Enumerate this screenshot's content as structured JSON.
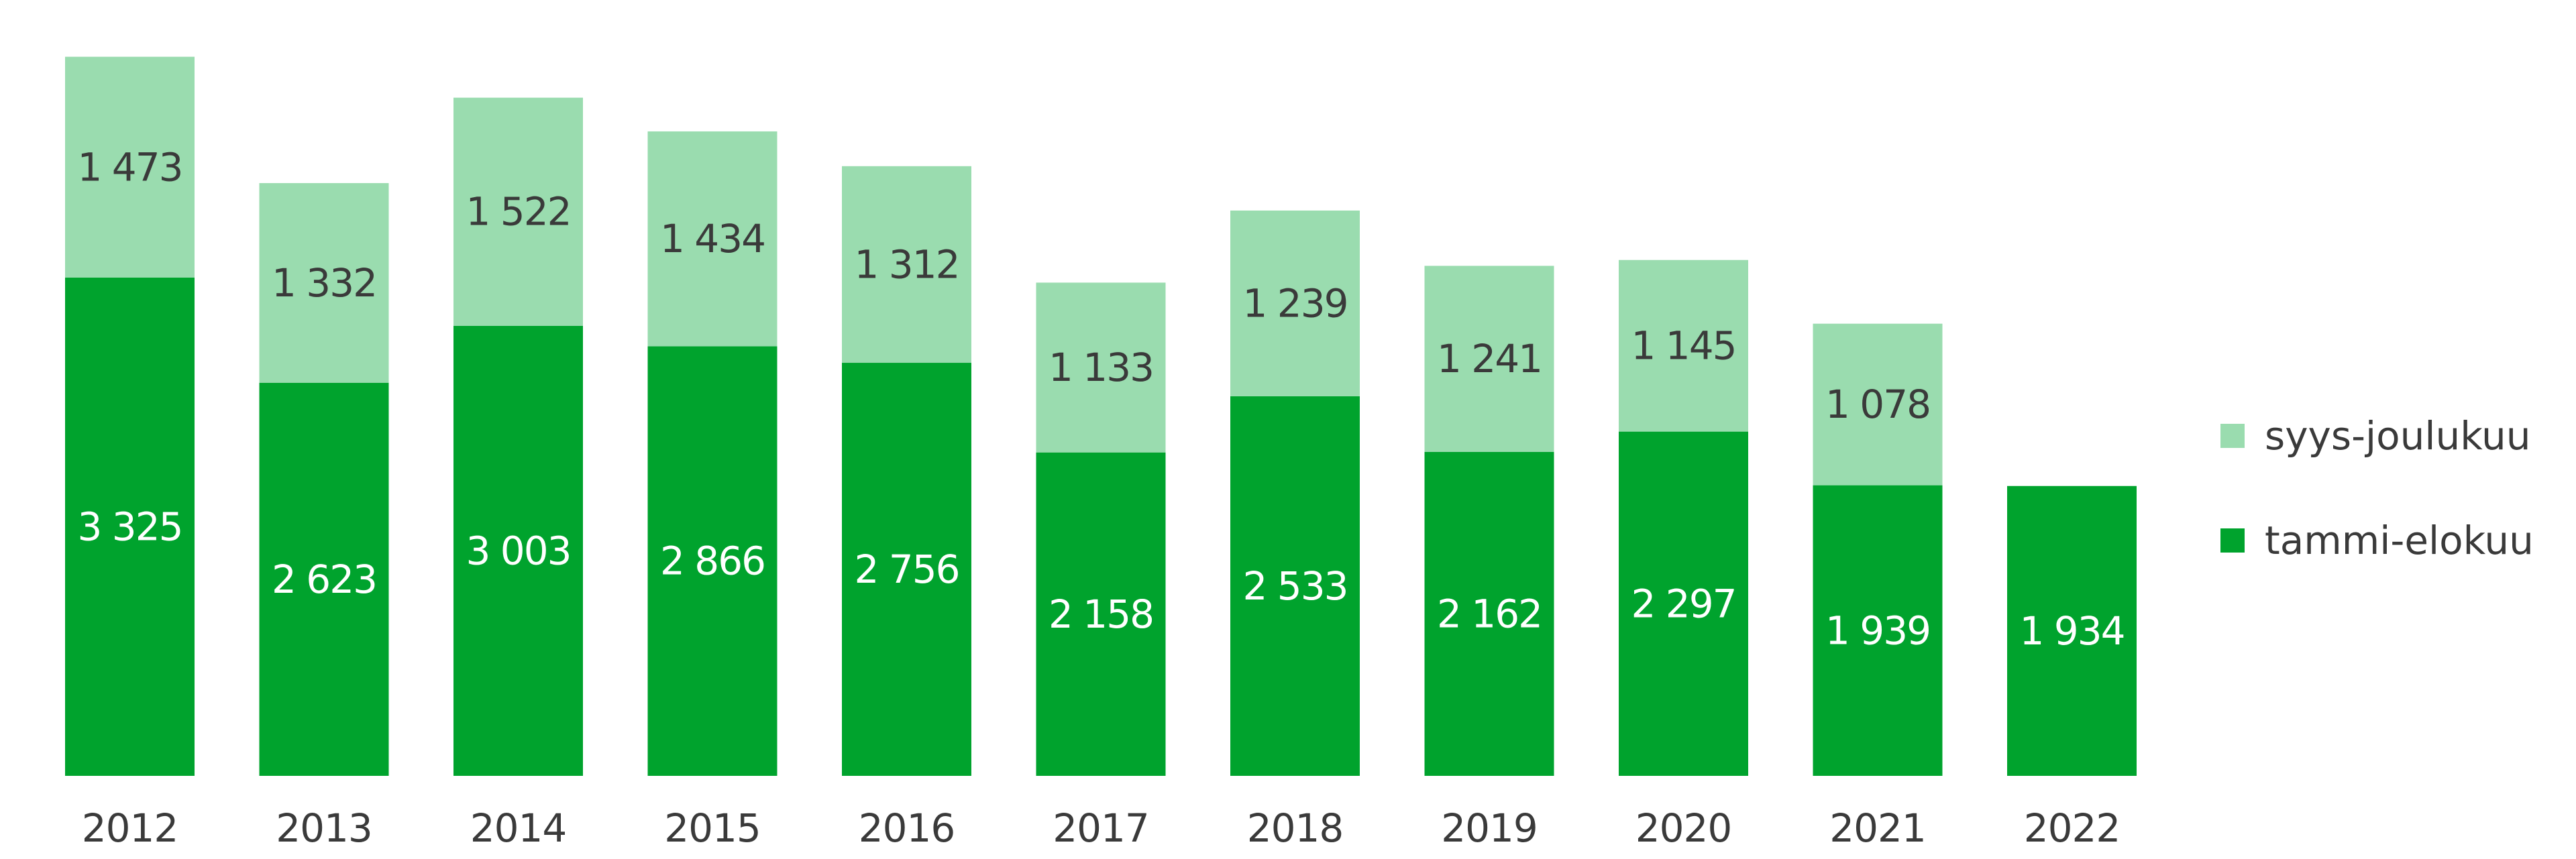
{
  "chart_data": {
    "type": "bar",
    "stacked": true,
    "categories": [
      "2012",
      "2013",
      "2014",
      "2015",
      "2016",
      "2017",
      "2018",
      "2019",
      "2020",
      "2021",
      "2022"
    ],
    "series": [
      {
        "name": "tammi-elokuu",
        "color": "#00a32d",
        "label_color": "#ffffff",
        "values": [
          3325,
          2623,
          3003,
          2866,
          2756,
          2158,
          2533,
          2162,
          2297,
          1939,
          1934
        ],
        "labels": [
          "3 325",
          "2 623",
          "3 003",
          "2 866",
          "2 756",
          "2 158",
          "2 533",
          "2 162",
          "2 297",
          "1 939",
          "1 934"
        ]
      },
      {
        "name": "syys-joulukuu",
        "color": "#9adcaf",
        "label_color": "#3a3a3a",
        "values": [
          1473,
          1332,
          1522,
          1434,
          1312,
          1133,
          1239,
          1241,
          1145,
          1078,
          null
        ],
        "labels": [
          "1 473",
          "1 332",
          "1 522",
          "1 434",
          "1 312",
          "1 133",
          "1 239",
          "1 241",
          "1 145",
          "1 078",
          ""
        ]
      }
    ],
    "legend": {
      "position": "right",
      "order": [
        "syys-joulukuu",
        "tammi-elokuu"
      ]
    },
    "title": "",
    "xlabel": "",
    "ylabel": "",
    "grid": false
  }
}
